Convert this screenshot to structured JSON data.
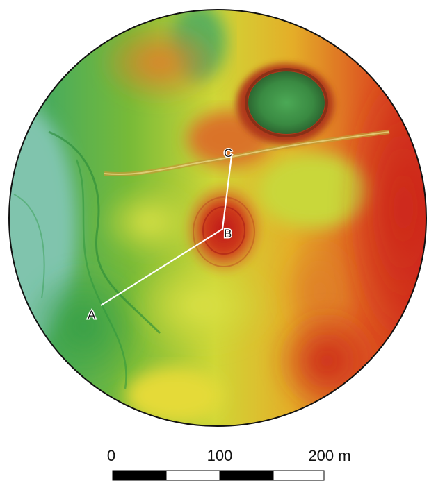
{
  "map": {
    "profile_points": [
      {
        "id": "A",
        "label": "A"
      },
      {
        "id": "B",
        "label": "B"
      },
      {
        "id": "C",
        "label": "C"
      }
    ],
    "scale_bar": {
      "labels": [
        "0",
        "100",
        "200 m"
      ],
      "segment_colors": [
        "#000000",
        "#ffffff",
        "#000000",
        "#ffffff"
      ]
    },
    "colors": {
      "low": "#6bbf9c",
      "mid_low": "#3fae4a",
      "mid": "#d9e23a",
      "mid_high": "#f0a51e",
      "high": "#e0301e",
      "profile_line": "#ffffff",
      "border": "#111111"
    }
  }
}
